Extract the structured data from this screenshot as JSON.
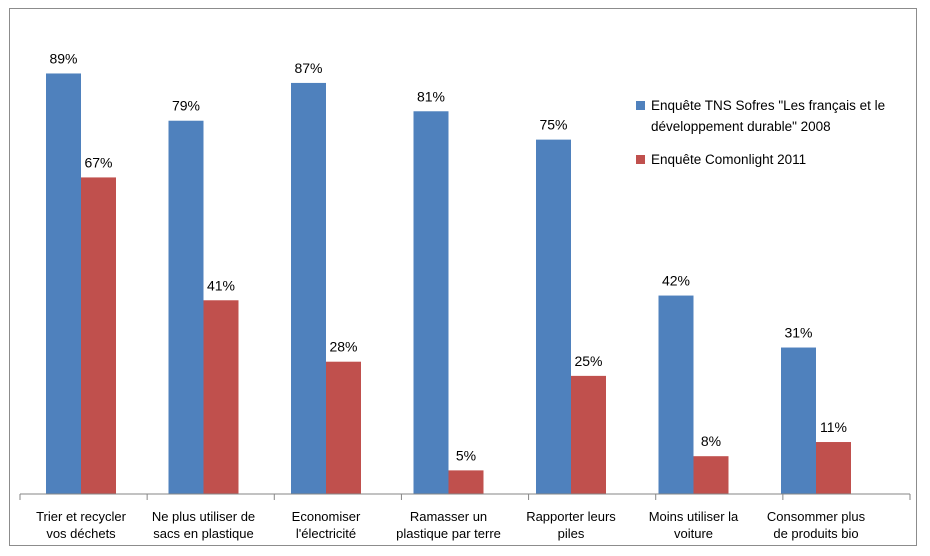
{
  "chart_data": {
    "type": "bar",
    "categories": [
      [
        "Trier et recycler",
        "vos déchets"
      ],
      [
        "Ne plus utiliser de",
        "sacs en plastique"
      ],
      [
        "Economiser",
        "l'électricité"
      ],
      [
        "Ramasser un",
        "plastique par terre"
      ],
      [
        "Rapporter leurs",
        "piles"
      ],
      [
        "Moins utiliser la",
        "voiture"
      ],
      [
        "Consommer plus",
        "de produits bio"
      ]
    ],
    "series": [
      {
        "name": [
          "Enquête TNS Sofres \"Les français et le",
          "développement durable\" 2008"
        ],
        "color": "#4f81bd",
        "values": [
          89,
          79,
          87,
          81,
          75,
          42,
          31
        ]
      },
      {
        "name": [
          "Enquête Comonlight 2011"
        ],
        "color": "#c0504d",
        "values": [
          67,
          41,
          28,
          5,
          25,
          8,
          11
        ]
      }
    ],
    "value_suffix": "%",
    "ylim": [
      0,
      100
    ],
    "grid": false,
    "legend": "right"
  }
}
